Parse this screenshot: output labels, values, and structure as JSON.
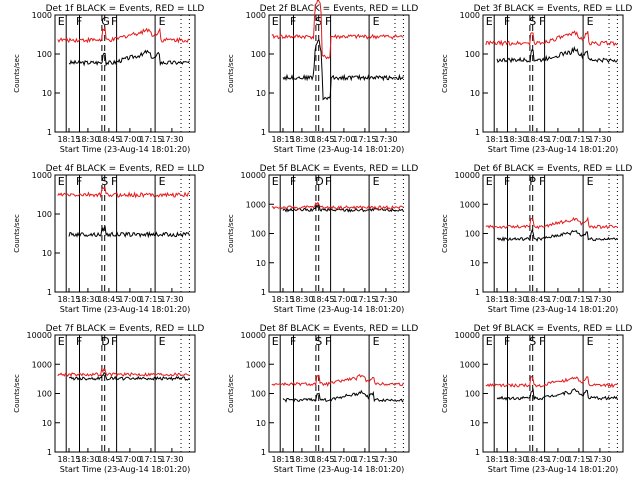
{
  "figure": {
    "xlabel": "Start Time (23-Aug-14 18:01:20)",
    "ylabel": "Counts/sec"
  },
  "chart_data": [
    {
      "type": "line",
      "title": "Det 1f BLACK = Events, RED = LLD",
      "ylim": [
        1,
        1000
      ],
      "yticks": [
        "1",
        "10",
        "100",
        "1000"
      ],
      "xticks": [
        "18:15",
        "18:30",
        "18:45",
        "17:00",
        "17:15",
        "17:30"
      ],
      "markers": [
        "E",
        "F",
        "G",
        "F",
        "E"
      ],
      "series": [
        {
          "name": "Events",
          "color": "#000000",
          "base": 60,
          "profile": "flare"
        },
        {
          "name": "LLD",
          "color": "#e41a1c",
          "base": 230,
          "profile": "flare"
        }
      ]
    },
    {
      "type": "line",
      "title": "Det 2f BLACK = Events, RED = LLD",
      "ylim": [
        1,
        1000
      ],
      "yticks": [
        "1",
        "10",
        "100",
        "1000"
      ],
      "xticks": [
        "18:15",
        "18:30",
        "18:45",
        "17:00",
        "17:15",
        "17:30"
      ],
      "markers": [
        "E",
        "F",
        "S",
        "F",
        "E"
      ],
      "series": [
        {
          "name": "Events",
          "color": "#000000",
          "base": 25,
          "profile": "spike"
        },
        {
          "name": "LLD",
          "color": "#e41a1c",
          "base": 280,
          "profile": "spike"
        }
      ]
    },
    {
      "type": "line",
      "title": "Det 3f BLACK = Events, RED = LLD",
      "ylim": [
        1,
        1000
      ],
      "yticks": [
        "1",
        "10",
        "100",
        "1000"
      ],
      "xticks": [
        "18:15",
        "18:30",
        "18:45",
        "17:00",
        "17:15",
        "17:30"
      ],
      "markers": [
        "E",
        "F",
        "S",
        "F",
        "E"
      ],
      "series": [
        {
          "name": "Events",
          "color": "#000000",
          "base": 70,
          "profile": "flare"
        },
        {
          "name": "LLD",
          "color": "#e41a1c",
          "base": 190,
          "profile": "flare"
        }
      ]
    },
    {
      "type": "line",
      "title": "Det 4f BLACK = Events, RED = LLD",
      "ylim": [
        1,
        1000
      ],
      "yticks": [
        "1",
        "10",
        "100",
        "1000"
      ],
      "xticks": [
        "18:15",
        "18:30",
        "18:45",
        "17:00",
        "17:15",
        "17:30"
      ],
      "markers": [
        "E",
        "F",
        "S",
        "F",
        "E"
      ],
      "series": [
        {
          "name": "Events",
          "color": "#000000",
          "base": 30,
          "profile": "flat"
        },
        {
          "name": "LLD",
          "color": "#e41a1c",
          "base": 310,
          "profile": "flat"
        }
      ]
    },
    {
      "type": "line",
      "title": "Det 5f BLACK = Events, RED = LLD",
      "ylim": [
        1,
        10000
      ],
      "yticks": [
        "1",
        "10",
        "100",
        "1000",
        "10000"
      ],
      "xticks": [
        "18:15",
        "18:30",
        "18:45",
        "17:00",
        "17:15",
        "17:30"
      ],
      "markers": [
        "E",
        "F",
        "D",
        "F",
        "E"
      ],
      "series": [
        {
          "name": "Events",
          "color": "#000000",
          "base": 640,
          "profile": "flat"
        },
        {
          "name": "LLD",
          "color": "#e41a1c",
          "base": 780,
          "profile": "flat"
        }
      ]
    },
    {
      "type": "line",
      "title": "Det 6f BLACK = Events, RED = LLD",
      "ylim": [
        1,
        10000
      ],
      "yticks": [
        "1",
        "10",
        "100",
        "1000",
        "10000"
      ],
      "xticks": [
        "18:15",
        "18:30",
        "18:45",
        "17:00",
        "17:15",
        "17:30"
      ],
      "markers": [
        "E",
        "F",
        "P",
        "F",
        "E"
      ],
      "series": [
        {
          "name": "Events",
          "color": "#000000",
          "base": 65,
          "profile": "flare"
        },
        {
          "name": "LLD",
          "color": "#e41a1c",
          "base": 170,
          "profile": "flare"
        }
      ]
    },
    {
      "type": "line",
      "title": "Det 7f BLACK = Events, RED = LLD",
      "ylim": [
        1,
        10000
      ],
      "yticks": [
        "1",
        "10",
        "100",
        "1000",
        "10000"
      ],
      "xticks": [
        "18:15",
        "18:30",
        "18:45",
        "17:00",
        "17:15",
        "17:30"
      ],
      "markers": [
        "E",
        "F",
        "D",
        "F",
        "E"
      ],
      "series": [
        {
          "name": "Events",
          "color": "#000000",
          "base": 330,
          "profile": "flat"
        },
        {
          "name": "LLD",
          "color": "#e41a1c",
          "base": 450,
          "profile": "flat"
        }
      ]
    },
    {
      "type": "line",
      "title": "Det 8f BLACK = Events, RED = LLD",
      "ylim": [
        1,
        10000
      ],
      "yticks": [
        "1",
        "10",
        "100",
        "1000",
        "10000"
      ],
      "xticks": [
        "18:15",
        "18:30",
        "18:45",
        "17:00",
        "17:15",
        "17:30"
      ],
      "markers": [
        "E",
        "F",
        "S",
        "F",
        "E"
      ],
      "series": [
        {
          "name": "Events",
          "color": "#000000",
          "base": 60,
          "profile": "flare"
        },
        {
          "name": "LLD",
          "color": "#e41a1c",
          "base": 210,
          "profile": "flare"
        }
      ]
    },
    {
      "type": "line",
      "title": "Det 9f BLACK = Events, RED = LLD",
      "ylim": [
        1,
        10000
      ],
      "yticks": [
        "1",
        "10",
        "100",
        "1000",
        "10000"
      ],
      "xticks": [
        "18:15",
        "18:30",
        "18:45",
        "17:00",
        "17:15",
        "17:30"
      ],
      "markers": [
        "E",
        "F",
        "S",
        "F",
        "E"
      ],
      "series": [
        {
          "name": "Events",
          "color": "#000000",
          "base": 70,
          "profile": "flare"
        },
        {
          "name": "LLD",
          "color": "#e41a1c",
          "base": 190,
          "profile": "flare"
        }
      ]
    }
  ]
}
